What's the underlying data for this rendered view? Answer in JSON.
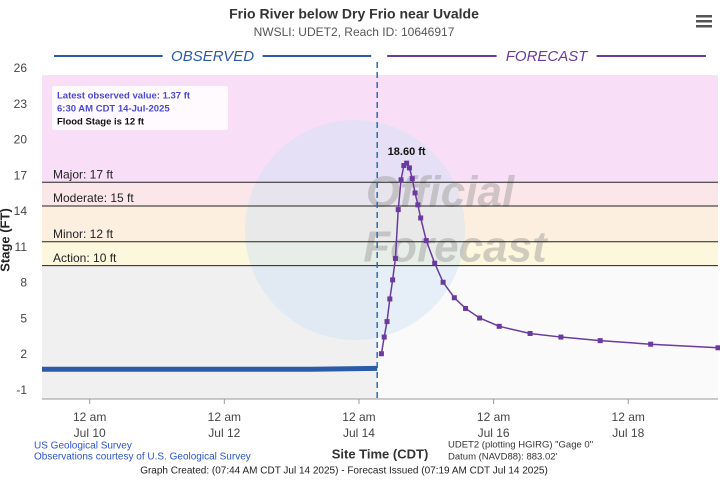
{
  "chart_data": {
    "type": "hydrograph",
    "title": "Frio River below Dry Frio near Uvalde",
    "subtitle": "NWSLI: UDET2, Reach ID: 10646917",
    "y_label": "Stage (FT)",
    "x_label": "Site Time (CDT)",
    "ylim": [
      -1.2,
      26
    ],
    "yticks": [
      -1,
      2,
      5,
      8,
      11,
      14,
      17,
      20,
      23,
      26
    ],
    "xlim": [
      "2025-07-09T07:00",
      "2025-07-19T08:00"
    ],
    "xticks": [
      {
        "value": "2025-07-10T00:00",
        "label": [
          "12 am",
          "Jul 10"
        ]
      },
      {
        "value": "2025-07-12T00:00",
        "label": [
          "12 am",
          "Jul 12"
        ]
      },
      {
        "value": "2025-07-14T00:00",
        "label": [
          "12 am",
          "Jul 14"
        ]
      },
      {
        "value": "2025-07-16T00:00",
        "label": [
          "12 am",
          "Jul 16"
        ]
      },
      {
        "value": "2025-07-18T00:00",
        "label": [
          "12 am",
          "Jul 18"
        ]
      }
    ],
    "flood_stages": [
      {
        "label": "Major: 17 ft",
        "value": 17,
        "color": "#f8dff7"
      },
      {
        "label": "Moderate: 15 ft",
        "value": 15,
        "color": "#fbe6ea"
      },
      {
        "label": "Minor: 12 ft",
        "value": 12,
        "color": "#fdefdf"
      },
      {
        "label": "Action: 10 ft",
        "value": 10,
        "color": "#fcf7dd"
      }
    ],
    "series": [
      {
        "name": "OBSERVED",
        "color": "#2b5ba8",
        "x": [
          "2025-07-09T07:00",
          "2025-07-10T07:00",
          "2025-07-11T07:00",
          "2025-07-12T07:00",
          "2025-07-13T07:00",
          "2025-07-14T06:30"
        ],
        "values": [
          1.3,
          1.3,
          1.3,
          1.3,
          1.3,
          1.37
        ]
      },
      {
        "name": "FORECAST",
        "color": "#6a3a9e",
        "x": [
          "2025-07-14T08:00",
          "2025-07-14T09:00",
          "2025-07-14T10:00",
          "2025-07-14T11:00",
          "2025-07-14T12:00",
          "2025-07-14T13:00",
          "2025-07-14T14:00",
          "2025-07-14T15:00",
          "2025-07-14T16:00",
          "2025-07-14T17:00",
          "2025-07-14T18:00",
          "2025-07-14T19:00",
          "2025-07-14T20:00",
          "2025-07-14T21:00",
          "2025-07-14T22:00",
          "2025-07-15T00:00",
          "2025-07-15T03:00",
          "2025-07-15T06:00",
          "2025-07-15T10:00",
          "2025-07-15T14:00",
          "2025-07-15T19:00",
          "2025-07-16T02:00",
          "2025-07-16T13:00",
          "2025-07-17T00:00",
          "2025-07-17T14:00",
          "2025-07-18T08:00",
          "2025-07-19T08:00"
        ],
        "values": [
          2.6,
          4.0,
          5.3,
          7.2,
          8.8,
          10.6,
          14.7,
          17.2,
          18.4,
          18.6,
          18.2,
          17.3,
          16.1,
          15.1,
          14.0,
          12.1,
          10.2,
          8.6,
          7.3,
          6.4,
          5.6,
          4.9,
          4.3,
          4.0,
          3.7,
          3.4,
          3.1
        ],
        "value_labels": [
          null,
          null,
          null,
          null,
          null,
          null,
          null,
          null,
          null,
          "18.60 ft",
          null,
          null,
          null,
          null,
          null,
          null,
          null,
          null,
          null,
          null,
          null,
          null,
          null,
          null,
          null,
          null,
          null
        ]
      }
    ],
    "info_box": [
      "Latest observed value: 1.37 ft",
      "6:30 AM CDT 14-Jul-2025",
      "Flood Stage is 12 ft"
    ],
    "watermark": [
      "Official",
      "Forecast"
    ],
    "source": [
      "US Geological Survey",
      "Observations courtesy of U.S. Geological Survey"
    ],
    "datum": [
      "UDET2 (plotting HGIRG) \"Gage 0\"",
      "Datum (NAVD88): 883.02'"
    ],
    "footer": "Graph Created: (07:44 AM CDT Jul 14 2025) - Forecast Issued (07:19 AM CDT Jul 14 2025)"
  }
}
